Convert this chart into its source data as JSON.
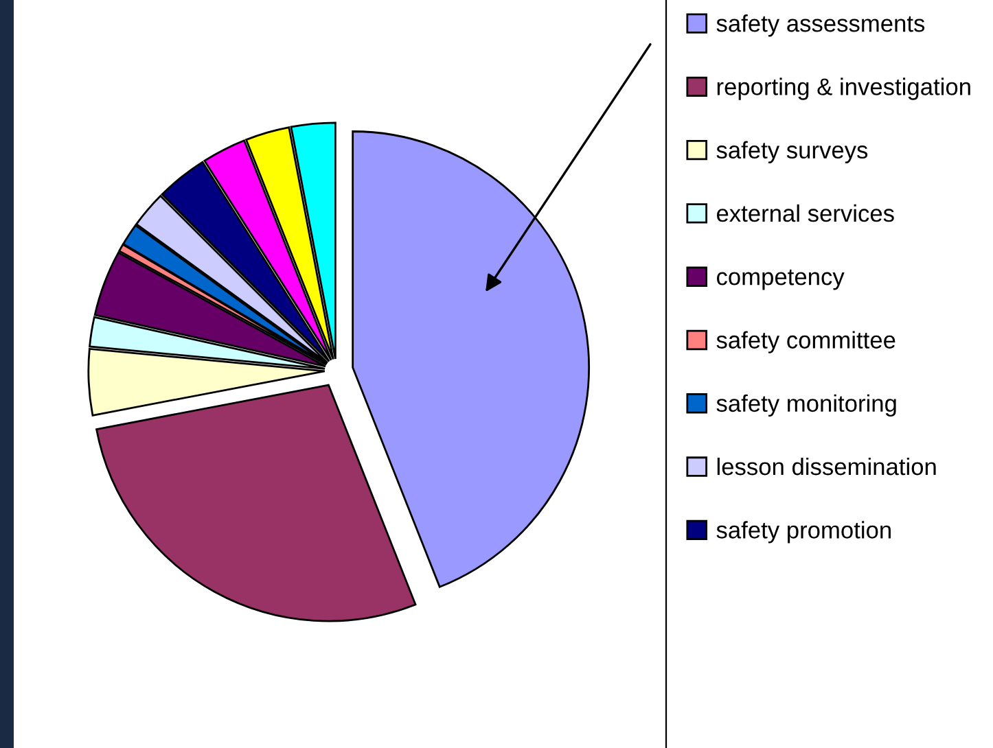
{
  "chart_data": {
    "type": "pie",
    "categories": [
      "safety assessments",
      "reporting & investigation",
      "safety surveys",
      "external services",
      "competency",
      "safety committee",
      "safety monitoring",
      "lesson dissemination",
      "safety promotion",
      null,
      null,
      null
    ],
    "values": [
      44,
      28,
      4.5,
      2,
      4.5,
      0.5,
      1.5,
      2.5,
      3.5,
      3,
      3,
      3
    ],
    "colors": [
      "#9999ff",
      "#993366",
      "#ffffcc",
      "#ccffff",
      "#660066",
      "#ff8080",
      "#0066cc",
      "#ccccff",
      "#000080",
      "#ff00ff",
      "#ffff00",
      "#00ffff"
    ],
    "legend": "right"
  }
}
